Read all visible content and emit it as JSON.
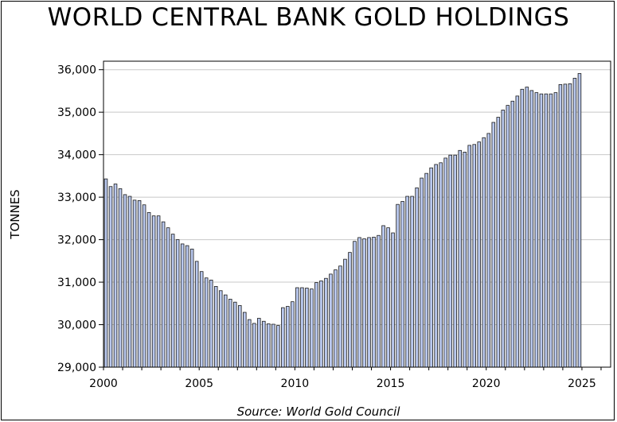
{
  "chart_data": {
    "type": "bar",
    "title": "WORLD CENTRAL BANK GOLD HOLDINGS",
    "ylabel": "TONNES",
    "xlabel": "",
    "source": "Source: World Gold Council",
    "xlim": [
      2000,
      2026.5
    ],
    "ylim": [
      29000,
      36200
    ],
    "x_ticks": [
      2000,
      2005,
      2010,
      2015,
      2020,
      2025
    ],
    "x_tick_labels": [
      "2000",
      "2005",
      "2010",
      "2015",
      "2020",
      "2025"
    ],
    "y_ticks": [
      29000,
      30000,
      31000,
      32000,
      33000,
      34000,
      35000,
      36000
    ],
    "y_tick_labels": [
      "29,000",
      "30,000",
      "31,000",
      "32,000",
      "33,000",
      "34,000",
      "35,000",
      "36,000"
    ],
    "grid": true,
    "bar_color": "#b9c8ee",
    "series": [
      {
        "start": 2000.0,
        "step": 0.25,
        "values": [
          33430,
          33250,
          33310,
          33200,
          33060,
          33020,
          32930,
          32920,
          32820,
          32640,
          32560,
          32560,
          32420,
          32280,
          32130,
          32000,
          31900,
          31860,
          31780,
          31490,
          31250,
          31100,
          31050,
          30900,
          30800,
          30700,
          30600,
          30530,
          30450,
          30290,
          30120,
          30030,
          30150,
          30080,
          30020,
          30010,
          29980,
          30400,
          30430,
          30540,
          30870,
          30870,
          30860,
          30840,
          30990,
          31030,
          31090,
          31190,
          31290,
          31380,
          31540,
          31700,
          31960,
          32050,
          32020,
          32050,
          32060,
          32100,
          32330,
          32280,
          32160,
          32830,
          32900,
          33020,
          33020,
          33220,
          33450,
          33560,
          33690,
          33770,
          33810,
          33920,
          33990,
          33990,
          34100,
          34060,
          34220,
          34240,
          34300,
          34400,
          34500,
          34760,
          34880,
          35050,
          35160,
          35260,
          35380,
          35540,
          35590,
          35510,
          35460,
          35430,
          35430,
          35430,
          35460,
          35650,
          35660,
          35670,
          35800,
          35910
        ]
      }
    ]
  }
}
